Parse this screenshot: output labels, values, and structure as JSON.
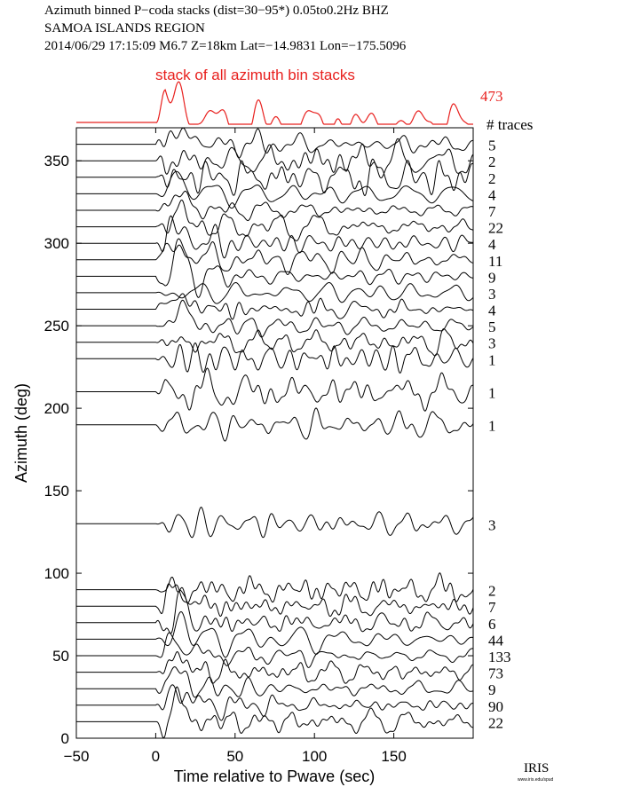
{
  "header": {
    "line1": "Azimuth binned P−coda stacks (dist=30−95*)  0.05to0.2Hz  BHZ",
    "line2": "SAMOA ISLANDS REGION",
    "line3": "2014/06/29  17:15:09  M6.7  Z=18km Lat=−14.9831 Lon=−175.5096"
  },
  "chart_data": {
    "type": "line",
    "title": "stack of all azimuth bin stacks",
    "xlabel": "Time relative to Pwave (sec)",
    "ylabel": "Azimuth (deg)",
    "xlim": [
      -50,
      200
    ],
    "ylim": [
      0,
      380
    ],
    "xticks": [
      -50,
      0,
      50,
      100,
      150
    ],
    "yticks": [
      0,
      50,
      100,
      150,
      200,
      250,
      300,
      350
    ],
    "xtick_labels": [
      "−50",
      "0",
      "50",
      "100",
      "150"
    ],
    "ytick_labels": [
      "0",
      "50",
      "100",
      "150",
      "200",
      "250",
      "300",
      "350"
    ],
    "traces_label": "# traces",
    "total_traces": "473",
    "summary_color": "#e8201e",
    "trace_color": "#000000",
    "onset_time_sec": 0,
    "azimuth_bins": [
      {
        "azimuth": 360,
        "n_traces": "5"
      },
      {
        "azimuth": 350,
        "n_traces": "2"
      },
      {
        "azimuth": 340,
        "n_traces": "2"
      },
      {
        "azimuth": 330,
        "n_traces": "4"
      },
      {
        "azimuth": 320,
        "n_traces": "7"
      },
      {
        "azimuth": 310,
        "n_traces": "22"
      },
      {
        "azimuth": 300,
        "n_traces": "4"
      },
      {
        "azimuth": 290,
        "n_traces": "11"
      },
      {
        "azimuth": 280,
        "n_traces": "9"
      },
      {
        "azimuth": 270,
        "n_traces": "3"
      },
      {
        "azimuth": 260,
        "n_traces": "4"
      },
      {
        "azimuth": 250,
        "n_traces": "5"
      },
      {
        "azimuth": 240,
        "n_traces": "3"
      },
      {
        "azimuth": 230,
        "n_traces": "1"
      },
      {
        "azimuth": 210,
        "n_traces": "1"
      },
      {
        "azimuth": 190,
        "n_traces": "1"
      },
      {
        "azimuth": 130,
        "n_traces": "3"
      },
      {
        "azimuth": 90,
        "n_traces": "2"
      },
      {
        "azimuth": 80,
        "n_traces": "7"
      },
      {
        "azimuth": 70,
        "n_traces": "6"
      },
      {
        "azimuth": 60,
        "n_traces": "44"
      },
      {
        "azimuth": 50,
        "n_traces": "133"
      },
      {
        "azimuth": 40,
        "n_traces": "73"
      },
      {
        "azimuth": 30,
        "n_traces": "9"
      },
      {
        "azimuth": 20,
        "n_traces": "90"
      },
      {
        "azimuth": 10,
        "n_traces": "22"
      }
    ]
  },
  "logo": {
    "name": "IRIS",
    "url_text": "www.iris.edu/spud"
  }
}
